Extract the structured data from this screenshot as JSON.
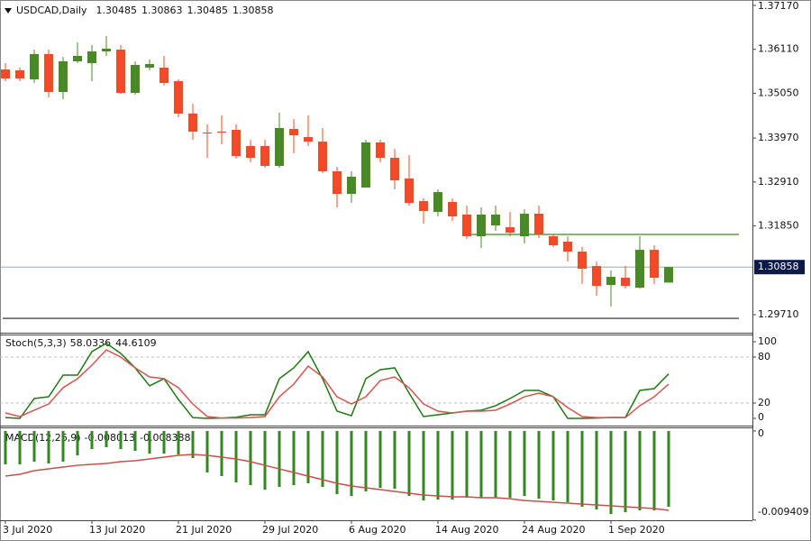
{
  "chart_data": [
    {
      "type": "candlestick",
      "header": "USDCAD,Daily",
      "categories": [
        "3 Jul 2020",
        null,
        null,
        null,
        null,
        null,
        "13 Jul 2020",
        null,
        null,
        null,
        null,
        null,
        "21 Jul 2020",
        null,
        null,
        null,
        null,
        null,
        "29 Jul 2020",
        null,
        null,
        null,
        null,
        null,
        "6 Aug 2020",
        null,
        null,
        null,
        null,
        null,
        "14 Aug 2020",
        null,
        null,
        null,
        null,
        null,
        "24 Aug 2020",
        null,
        null,
        null,
        null,
        null,
        "1 Sep 2020",
        null,
        null,
        null,
        null
      ],
      "open": [
        1.35625,
        1.35604,
        1.35386,
        1.35995,
        1.35082,
        1.35821,
        1.35777,
        1.3606,
        1.36104,
        1.3506,
        1.35669,
        1.35669,
        1.35342,
        1.3456,
        1.34103,
        1.34125,
        1.34168,
        1.33777,
        1.33777,
        1.33298,
        1.3419,
        1.33994,
        1.33885,
        1.33168,
        1.32624,
        1.32776,
        1.33864,
        1.33494,
        1.32994,
        1.3245,
        1.32189,
        1.32428,
        1.32124,
        1.31602,
        1.31863,
        1.31819,
        1.31602,
        1.32146,
        1.31602,
        1.31471,
        1.31232,
        1.30884,
        1.30427,
        1.30601,
        1.30362,
        1.31275,
        1.30485
      ],
      "high": [
        1.35777,
        1.35669,
        1.36104,
        1.36104,
        1.3593,
        1.36278,
        1.36213,
        1.3643,
        1.36213,
        1.35821,
        1.35865,
        1.35952,
        1.35386,
        1.34799,
        1.34298,
        1.34516,
        1.34298,
        1.33929,
        1.33929,
        1.34581,
        1.34429,
        1.34516,
        1.34212,
        1.33277,
        1.33168,
        1.33929,
        1.33929,
        1.33711,
        1.33559,
        1.32515,
        1.32733,
        1.32515,
        1.32341,
        1.32298,
        1.32341,
        1.32189,
        1.32254,
        1.32341,
        1.31645,
        1.31602,
        1.31341,
        1.30993,
        1.30775,
        1.30884,
        1.31602,
        1.31384,
        1.30863
      ],
      "low": [
        1.35342,
        1.35342,
        1.35299,
        1.34951,
        1.34908,
        1.35777,
        1.35342,
        1.35952,
        1.35038,
        1.35016,
        1.35604,
        1.35234,
        1.34473,
        1.33929,
        1.33494,
        1.3382,
        1.33472,
        1.33385,
        1.33255,
        1.33255,
        1.33603,
        1.33777,
        1.33124,
        1.32298,
        1.32406,
        1.32776,
        1.33385,
        1.32733,
        1.32341,
        1.31906,
        1.3208,
        1.31971,
        1.31536,
        1.31319,
        1.31732,
        1.31602,
        1.31428,
        1.31558,
        1.31341,
        1.30993,
        1.30449,
        1.30166,
        1.29905,
        1.3034,
        1.3034,
        1.30449,
        1.30485
      ],
      "close": [
        1.35408,
        1.35408,
        1.35995,
        1.35082,
        1.35821,
        1.35952,
        1.3606,
        1.36126,
        1.3506,
        1.35734,
        1.35756,
        1.35299,
        1.3456,
        1.34125,
        1.34081,
        1.34103,
        1.33537,
        1.33494,
        1.33298,
        1.34212,
        1.34038,
        1.33885,
        1.33168,
        1.32624,
        1.33037,
        1.33864,
        1.33494,
        1.3295,
        1.32406,
        1.3221,
        1.32667,
        1.3208,
        1.31602,
        1.32124,
        1.32124,
        1.31689,
        1.32146,
        1.31645,
        1.31384,
        1.31232,
        1.30819,
        1.30405,
        1.30623,
        1.30405,
        1.31275,
        1.30601,
        1.30858
      ],
      "up_color": "#4a8a26",
      "down_color": "#f04b28",
      "ylim": [
        1.29275,
        1.373
      ],
      "yticks": [
        {
          "value": 1.3717,
          "label": "1.37170"
        },
        {
          "value": 1.3611,
          "label": "1.36110"
        },
        {
          "value": 1.3505,
          "label": "1.35050"
        },
        {
          "value": 1.3397,
          "label": "1.33970"
        },
        {
          "value": 1.3291,
          "label": "1.32910"
        },
        {
          "value": 1.3185,
          "label": "1.31850"
        },
        {
          "value": 1.2971,
          "label": "1.29710"
        }
      ],
      "levels": [
        {
          "value": 1.31645,
          "color": "#3a8a22"
        },
        {
          "value": 1.29622,
          "color": "#222222"
        }
      ]
    },
    {
      "type": "line",
      "title": "Stoch(5,3,3)",
      "series": [
        {
          "color": "#1e7a12",
          "values": [
            1,
            0,
            25.9,
            28.2,
            56.5,
            56.5,
            87.1,
            98,
            84.7,
            65.9,
            42.4,
            51.8,
            24.7,
            1,
            0,
            0.5,
            1.5,
            4.7,
            4.7,
            51.8,
            65.9,
            87.1,
            51.8,
            9.4,
            3.5,
            51.8,
            63.5,
            65.9,
            32.9,
            2.4,
            4.7,
            7.1,
            9.4,
            10.6,
            16.5,
            25.9,
            36.5,
            36.5,
            28.2,
            0,
            0,
            0.5,
            1.2,
            1.2,
            36.5,
            38.8,
            58.0336
          ]
        },
        {
          "color": "#d9534f",
          "values": [
            7.1,
            2.4,
            10.6,
            18.8,
            40,
            51.8,
            69.4,
            89.4,
            80,
            65.9,
            54.1,
            51.8,
            40,
            18.8,
            2.4,
            0.5,
            0.5,
            1,
            2.4,
            28.2,
            44.7,
            68.2,
            54.1,
            28.2,
            18.8,
            28.2,
            49.4,
            54.1,
            40,
            18.8,
            9.4,
            7.1,
            9.4,
            9.4,
            10.6,
            18.8,
            28.2,
            32.9,
            28.2,
            14.1,
            2.4,
            1,
            1,
            1,
            16.5,
            28.2,
            44.6109
          ]
        }
      ],
      "ylim": [
        -9.4,
        109.4
      ],
      "yticks": [
        100,
        80,
        20,
        0
      ],
      "grid_levels": [
        80,
        20
      ]
    },
    {
      "type": "macd",
      "title": "MACD(12,26,9)",
      "series": [
        {
          "type": "bar",
          "color": "#2f8a1c",
          "values": [
            -0.00353,
            -0.00353,
            -0.00324,
            -0.00343,
            -0.00324,
            -0.00258,
            -0.00191,
            -0.00172,
            -0.00191,
            -0.0021,
            -0.00239,
            -0.00239,
            -0.00248,
            -0.00286,
            -0.00439,
            -0.00477,
            -0.00544,
            -0.00572,
            -0.0062,
            -0.00591,
            -0.00572,
            -0.00553,
            -0.00591,
            -0.00668,
            -0.00687,
            -0.00639,
            -0.00601,
            -0.00611,
            -0.00687,
            -0.00735,
            -0.00725,
            -0.00725,
            -0.00706,
            -0.00706,
            -0.00706,
            -0.00706,
            -0.00687,
            -0.00716,
            -0.00735,
            -0.00754,
            -0.00801,
            -0.0083,
            -0.00878,
            -0.00859,
            -0.0084,
            -0.0084,
            -0.008013
          ]
        },
        {
          "type": "line",
          "color": "#c9504a",
          "values": [
            -0.00477,
            -0.00458,
            -0.0042,
            -0.00401,
            -0.00382,
            -0.00363,
            -0.00353,
            -0.00343,
            -0.00324,
            -0.00315,
            -0.00296,
            -0.00277,
            -0.00258,
            -0.00248,
            -0.00258,
            -0.00277,
            -0.00296,
            -0.00324,
            -0.00363,
            -0.00401,
            -0.00439,
            -0.00477,
            -0.00515,
            -0.00553,
            -0.00582,
            -0.00601,
            -0.0062,
            -0.00639,
            -0.00658,
            -0.00677,
            -0.00687,
            -0.00696,
            -0.00696,
            -0.00706,
            -0.00706,
            -0.00716,
            -0.00735,
            -0.00744,
            -0.00754,
            -0.00763,
            -0.00773,
            -0.00782,
            -0.00792,
            -0.00801,
            -0.00811,
            -0.0082,
            -0.008388
          ]
        }
      ],
      "ylim": [
        -0.00944,
        0.00038
      ],
      "yticks": [
        0,
        -0.009409
      ]
    }
  ]
}
